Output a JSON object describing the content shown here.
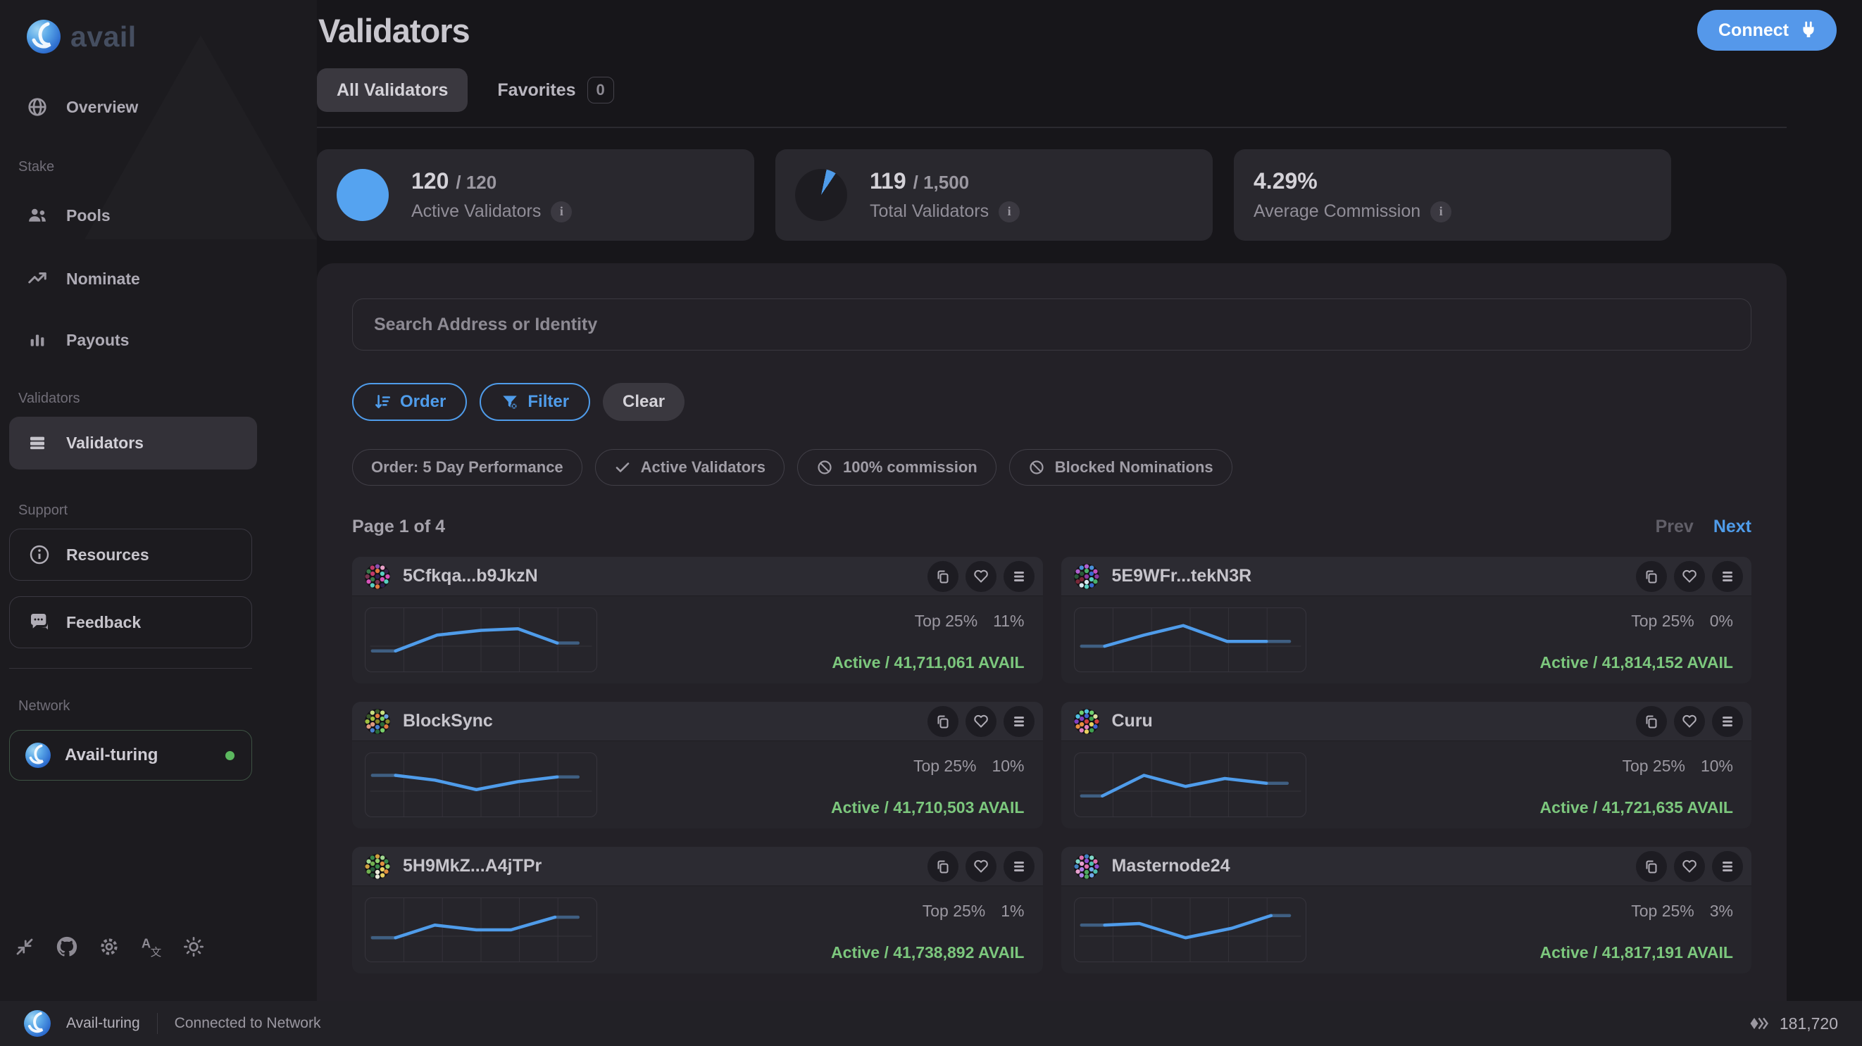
{
  "brand": {
    "wordmark": "avail"
  },
  "colors": {
    "accent_blue": "#4f9cea",
    "connect_blue": "#5598ea",
    "active_green": "#7cc77d",
    "online_green": "#5cb85f",
    "spark_line": "#4f9cea",
    "spark_line_muted": "#3f5f82",
    "panel_bg": "#232127",
    "sidebar_bg": "#1c1b1f"
  },
  "sidebar": {
    "overview": "Overview",
    "section_stake": "Stake",
    "pools": "Pools",
    "nominate": "Nominate",
    "payouts": "Payouts",
    "section_validators": "Validators",
    "validators": "Validators",
    "section_support": "Support",
    "resources": "Resources",
    "feedback": "Feedback",
    "section_network": "Network",
    "network_name": "Avail-turing"
  },
  "header": {
    "title": "Validators",
    "connect_label": "Connect",
    "tabs": [
      {
        "label": "All Validators"
      },
      {
        "label": "Favorites",
        "badge": "0"
      }
    ]
  },
  "stats": [
    {
      "value": "120",
      "total": "/ 120",
      "label": "Active Validators"
    },
    {
      "value": "119",
      "total": "/ 1,500",
      "label": "Total Validators"
    },
    {
      "value": "4.29%",
      "total": "",
      "label": "Average Commission"
    }
  ],
  "filters": {
    "search_placeholder": "Search Address or Identity",
    "order_label": "Order",
    "filter_label": "Filter",
    "clear_label": "Clear",
    "chips": [
      {
        "label": "Order: 5 Day Performance",
        "icon": "none"
      },
      {
        "label": "Active Validators",
        "icon": "check"
      },
      {
        "label": "100% commission",
        "icon": "prohibit"
      },
      {
        "label": "Blocked Nominations",
        "icon": "prohibit"
      }
    ]
  },
  "pagination": {
    "label": "Page 1 of 4",
    "prev": "Prev",
    "next": "Next"
  },
  "validators": [
    {
      "name": "5Cfkqa...b9JkzN",
      "top_label": "Top 25%",
      "performance": "11%",
      "status": "Active / 41,711,061 AVAIL",
      "spark": [
        [
          3,
          27
        ],
        [
          13,
          27
        ],
        [
          31,
          17
        ],
        [
          50,
          14
        ],
        [
          66,
          13
        ],
        [
          83,
          22
        ],
        [
          92,
          22
        ]
      ],
      "identicon": [
        "#2e2250",
        "#e07a3f",
        "#58cfc0",
        "#d553b8",
        "#7a3550",
        "#397a4a",
        "#c23a6a",
        "#8a50b0",
        "#e8a0c8",
        "#35254a",
        "#d553b8",
        "#58cfc0"
      ]
    },
    {
      "name": "5E9WFr...tekN3R",
      "top_label": "Top 25%",
      "performance": "0%",
      "status": "Active / 41,814,152 AVAIL",
      "spark": [
        [
          3,
          24
        ],
        [
          13,
          24
        ],
        [
          30,
          17
        ],
        [
          47,
          11
        ],
        [
          66,
          21
        ],
        [
          83,
          21
        ],
        [
          93,
          21
        ]
      ],
      "identicon": [
        "#8a3aa0",
        "#4ab06a",
        "#3a6ad0",
        "#58cfc0",
        "#d8e8f0",
        "#7a2838",
        "#2a5a3a",
        "#b060d0",
        "#4a90d8",
        "#c050c0"
      ]
    },
    {
      "name": "BlockSync",
      "top_label": "Top 25%",
      "performance": "10%",
      "status": "Active / 41,710,503 AVAIL",
      "spark": [
        [
          3,
          14
        ],
        [
          13,
          14
        ],
        [
          30,
          17
        ],
        [
          48,
          23
        ],
        [
          66,
          18
        ],
        [
          83,
          15
        ],
        [
          92,
          15
        ]
      ],
      "identicon": [
        "#8a8a2a",
        "#e07a3f",
        "#7ad06a",
        "#2a6a3a",
        "#4a80d0",
        "#e09a80",
        "#a0c040",
        "#3a5a2a",
        "#c8e080",
        "#6aa0e0"
      ]
    },
    {
      "name": "Curu",
      "top_label": "Top 25%",
      "performance": "10%",
      "status": "Active / 41,721,635 AVAIL",
      "spark": [
        [
          3,
          27
        ],
        [
          12,
          27
        ],
        [
          30,
          14
        ],
        [
          48,
          21
        ],
        [
          65,
          16
        ],
        [
          83,
          19
        ],
        [
          92,
          19
        ]
      ],
      "identicon": [
        "#d04040",
        "#4060d0",
        "#40a050",
        "#e8d060",
        "#e080c0",
        "#e89040",
        "#8040c0",
        "#50c0e0",
        "#70d070",
        "#e0e0a0"
      ]
    },
    {
      "name": "5H9MkZ...A4jTPr",
      "top_label": "Top 25%",
      "performance": "1%",
      "status": "Active / 41,738,892 AVAIL",
      "spark": [
        [
          3,
          25
        ],
        [
          13,
          25
        ],
        [
          30,
          17
        ],
        [
          48,
          20
        ],
        [
          63,
          20
        ],
        [
          82,
          12
        ],
        [
          92,
          12
        ]
      ],
      "identicon": [
        "#3a8a4a",
        "#90d070",
        "#e0903f",
        "#e8cf60",
        "#e8e8d8",
        "#2a5a3a",
        "#70b050",
        "#d0a040",
        "#a0d890"
      ]
    },
    {
      "name": "Masternode24",
      "top_label": "Top 25%",
      "performance": "3%",
      "status": "Active / 41,817,191 AVAIL",
      "spark": [
        [
          3,
          17
        ],
        [
          13,
          17
        ],
        [
          28,
          16
        ],
        [
          48,
          25
        ],
        [
          68,
          19
        ],
        [
          85,
          11
        ],
        [
          93,
          11
        ]
      ],
      "identicon": [
        "#e070b0",
        "#9050d0",
        "#50c0b0",
        "#70a8e8",
        "#50a860",
        "#b080e8",
        "#e8a0d0",
        "#4080c0",
        "#80d8c8"
      ]
    }
  ],
  "statusbar": {
    "network": "Avail-turing",
    "status": "Connected to Network",
    "block": "181,720"
  }
}
